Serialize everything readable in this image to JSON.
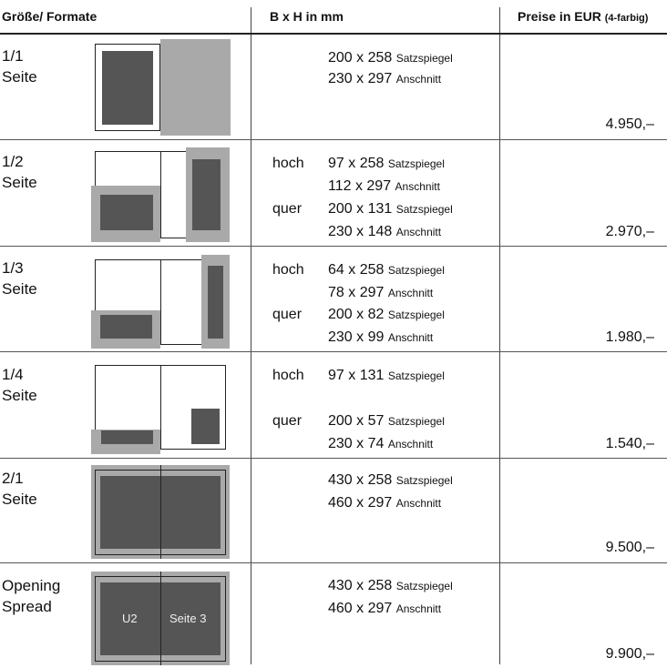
{
  "header": {
    "col_formats": "Größe/ Formate",
    "col_dimensions": "B x H in mm",
    "col_prices": "Preise in EUR",
    "col_prices_note": "(4-farbig)"
  },
  "rows": [
    {
      "size": "1/1",
      "unit": "Seite",
      "dims": [
        {
          "value": "200 x 258",
          "type": "Satzspiegel"
        },
        {
          "value": "230 x 297",
          "type": "Anschnitt"
        }
      ],
      "price": "4.950,–"
    },
    {
      "size": "1/2",
      "unit": "Seite",
      "orient_hoch": "hoch",
      "orient_quer": "quer",
      "dims": [
        {
          "value": "97 x 258",
          "type": "Satzspiegel"
        },
        {
          "value": "112 x 297",
          "type": "Anschnitt"
        },
        {
          "value": "200 x 131",
          "type": "Satzspiegel"
        },
        {
          "value": "230 x 148",
          "type": "Anschnitt"
        }
      ],
      "price": "2.970,–"
    },
    {
      "size": "1/3",
      "unit": "Seite",
      "orient_hoch": "hoch",
      "orient_quer": "quer",
      "dims": [
        {
          "value": "64 x 258",
          "type": "Satzspiegel"
        },
        {
          "value": "78 x 297",
          "type": "Anschnitt"
        },
        {
          "value": "200 x 82",
          "type": "Satzspiegel"
        },
        {
          "value": "230 x 99",
          "type": "Anschnitt"
        }
      ],
      "price": "1.980,–"
    },
    {
      "size": "1/4",
      "unit": "Seite",
      "orient_hoch": "hoch",
      "orient_quer": "quer",
      "dims": [
        {
          "value": "97 x 131",
          "type": "Satzspiegel"
        },
        {
          "value": "200 x 57",
          "type": "Satzspiegel"
        },
        {
          "value": "230 x 74",
          "type": "Anschnitt"
        }
      ],
      "price": "1.540,–"
    },
    {
      "size": "2/1",
      "unit": "Seite",
      "dims": [
        {
          "value": "430 x 258",
          "type": "Satzspiegel"
        },
        {
          "value": "460 x 297",
          "type": "Anschnitt"
        }
      ],
      "price": "9.500,–"
    },
    {
      "size": "Opening",
      "unit": "Spread",
      "dims": [
        {
          "value": "430 x 258",
          "type": "Satzspiegel"
        },
        {
          "value": "460 x 297",
          "type": "Anschnitt"
        }
      ],
      "diagram_left_label": "U2",
      "diagram_right_label": "Seite 3",
      "price": "9.900,–"
    }
  ],
  "colors": {
    "bleed_gray": "#a9a9a9",
    "ad_dark": "#555555",
    "rule": "#555555"
  }
}
